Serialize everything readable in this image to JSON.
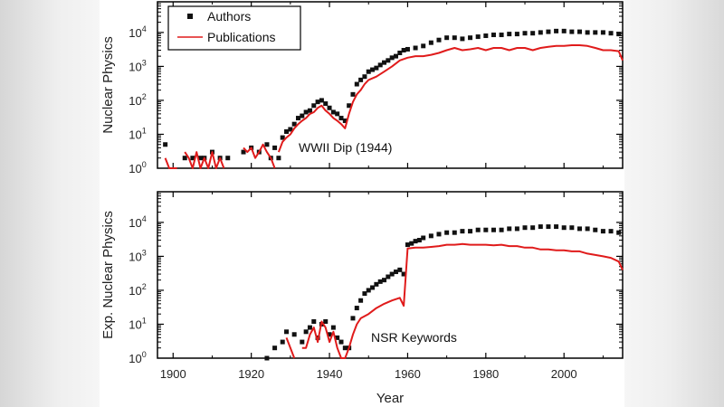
{
  "colors": {
    "authors": "#111111",
    "publications": "#e01b1b",
    "frame": "#000000",
    "page_background": "#f4f4f4"
  },
  "chart_data": [
    {
      "type": "scatter+line",
      "ylabel": "Nuclear Physics",
      "xlabel": "",
      "annotation": "WWII Dip (1944)",
      "yscale": "log",
      "xlim": [
        1896,
        2015
      ],
      "ylim": [
        1,
        80000
      ],
      "y_ticks": [
        1,
        10,
        100,
        1000,
        10000
      ],
      "y_tick_labels": [
        {
          "base": "10",
          "exp": "0"
        },
        {
          "base": "10",
          "exp": "1"
        },
        {
          "base": "10",
          "exp": "2"
        },
        {
          "base": "10",
          "exp": "3"
        },
        {
          "base": "10",
          "exp": "4"
        }
      ],
      "legend": {
        "placement": "top-left",
        "entries": [
          "Authors",
          "Publications"
        ]
      },
      "series": [
        {
          "name": "Authors",
          "kind": "markers",
          "x": [
            1898,
            1903,
            1905,
            1907,
            1908,
            1910,
            1912,
            1914,
            1918,
            1920,
            1922,
            1924,
            1925,
            1926,
            1927,
            1928,
            1929,
            1930,
            1931,
            1932,
            1933,
            1934,
            1935,
            1936,
            1937,
            1938,
            1939,
            1940,
            1941,
            1942,
            1943,
            1944,
            1945,
            1946,
            1947,
            1948,
            1949,
            1950,
            1951,
            1952,
            1953,
            1954,
            1955,
            1956,
            1957,
            1958,
            1959,
            1960,
            1962,
            1964,
            1966,
            1968,
            1970,
            1972,
            1974,
            1976,
            1978,
            1980,
            1982,
            1984,
            1986,
            1988,
            1990,
            1992,
            1994,
            1996,
            1998,
            2000,
            2002,
            2004,
            2006,
            2008,
            2010,
            2012,
            2014
          ],
          "y": [
            5,
            2,
            2,
            2,
            2,
            3,
            2,
            2,
            3,
            4,
            3,
            5,
            2,
            4,
            2,
            8,
            12,
            14,
            20,
            30,
            35,
            45,
            50,
            70,
            90,
            100,
            80,
            60,
            45,
            40,
            30,
            25,
            70,
            150,
            300,
            400,
            500,
            700,
            800,
            900,
            1100,
            1300,
            1500,
            1800,
            2000,
            2500,
            3000,
            3200,
            3500,
            4000,
            5000,
            6000,
            7000,
            7000,
            6500,
            7000,
            7500,
            8000,
            8500,
            8500,
            9000,
            9000,
            9500,
            9500,
            10000,
            10500,
            11000,
            11000,
            10500,
            10500,
            10000,
            10000,
            10000,
            9500,
            9000
          ]
        },
        {
          "name": "Publications",
          "kind": "line",
          "segments": [
            {
              "x": [
                1898,
                1899,
                1900,
                1901
              ],
              "y": [
                2,
                1,
                1,
                1
              ]
            },
            {
              "x": [
                1903,
                1904,
                1905,
                1906,
                1907,
                1908,
                1909,
                1910,
                1911,
                1912,
                1913
              ],
              "y": [
                3,
                2,
                1,
                3,
                1,
                2,
                1,
                3,
                1,
                2,
                1
              ]
            },
            {
              "x": [
                1918,
                1919,
                1920,
                1921,
                1922,
                1923,
                1924,
                1925,
                1926
              ],
              "y": [
                4,
                3,
                4,
                2,
                3,
                5,
                3,
                2,
                1
              ]
            },
            {
              "x": [
                1927,
                1928,
                1929,
                1930,
                1931,
                1932,
                1933,
                1934,
                1935,
                1936,
                1937,
                1938,
                1939,
                1940,
                1941,
                1942,
                1943,
                1944,
                1945,
                1946,
                1947,
                1948,
                1949,
                1950,
                1952,
                1954,
                1956,
                1958,
                1960,
                1962,
                1964,
                1966,
                1968,
                1970,
                1972,
                1974,
                1976,
                1978,
                1980,
                1982,
                1984,
                1986,
                1988,
                1990,
                1992,
                1994,
                1996,
                1998,
                2000,
                2002,
                2004,
                2006,
                2008,
                2010,
                2012,
                2014,
                2015
              ],
              "y": [
                3,
                6,
                8,
                10,
                15,
                20,
                25,
                30,
                40,
                45,
                60,
                70,
                50,
                40,
                30,
                25,
                20,
                15,
                40,
                90,
                150,
                200,
                300,
                400,
                500,
                700,
                1000,
                1500,
                1800,
                2000,
                2000,
                2200,
                2500,
                3000,
                3500,
                3000,
                3200,
                3500,
                3000,
                3500,
                3500,
                3000,
                3500,
                3500,
                3000,
                3500,
                3800,
                4000,
                4000,
                4200,
                4200,
                4000,
                3500,
                3000,
                3000,
                2800,
                1500
              ]
            }
          ]
        }
      ]
    },
    {
      "type": "scatter+line",
      "ylabel": "Exp. Nuclear Physics",
      "xlabel": "Year",
      "annotation": "NSR Keywords",
      "yscale": "log",
      "xlim": [
        1896,
        2015
      ],
      "ylim": [
        1,
        80000
      ],
      "y_ticks": [
        1,
        10,
        100,
        1000,
        10000
      ],
      "y_tick_labels": [
        {
          "base": "10",
          "exp": "0"
        },
        {
          "base": "10",
          "exp": "1"
        },
        {
          "base": "10",
          "exp": "2"
        },
        {
          "base": "10",
          "exp": "3"
        },
        {
          "base": "10",
          "exp": "4"
        }
      ],
      "x_ticks": [
        1900,
        1920,
        1940,
        1960,
        1980,
        2000
      ],
      "x_tick_labels": [
        "1900",
        "1920",
        "1940",
        "1960",
        "1980",
        "2000"
      ],
      "series": [
        {
          "name": "Authors",
          "kind": "markers",
          "x": [
            1924,
            1926,
            1928,
            1929,
            1931,
            1933,
            1934,
            1935,
            1936,
            1937,
            1938,
            1939,
            1940,
            1941,
            1942,
            1943,
            1944,
            1945,
            1946,
            1947,
            1948,
            1949,
            1950,
            1951,
            1952,
            1953,
            1954,
            1955,
            1956,
            1957,
            1958,
            1959,
            1960,
            1961,
            1962,
            1963,
            1964,
            1966,
            1968,
            1970,
            1972,
            1974,
            1976,
            1978,
            1980,
            1982,
            1984,
            1986,
            1988,
            1990,
            1992,
            1994,
            1996,
            1998,
            2000,
            2002,
            2004,
            2006,
            2008,
            2010,
            2012,
            2014
          ],
          "y": [
            1,
            2,
            3,
            6,
            5,
            3,
            6,
            8,
            12,
            4,
            10,
            12,
            5,
            8,
            4,
            3,
            2,
            2,
            15,
            30,
            50,
            80,
            100,
            120,
            150,
            180,
            200,
            250,
            300,
            350,
            400,
            300,
            2200,
            2400,
            2800,
            3000,
            3500,
            4000,
            4500,
            5000,
            5000,
            5500,
            5500,
            6000,
            6000,
            6000,
            6000,
            6500,
            6500,
            7000,
            7000,
            7500,
            7500,
            7500,
            7000,
            7000,
            6500,
            6500,
            6000,
            5500,
            5500,
            5000
          ]
        },
        {
          "name": "Publications",
          "kind": "line",
          "segments": [
            {
              "x": [
                1929,
                1930,
                1931
              ],
              "y": [
                4,
                2,
                1
              ]
            },
            {
              "x": [
                1933,
                1934,
                1935,
                1936,
                1937,
                1938,
                1939,
                1940,
                1941,
                1942,
                1943,
                1944,
                1945,
                1946,
                1947,
                1948,
                1950,
                1952,
                1954,
                1956,
                1958,
                1959,
                1960,
                1962,
                1964,
                1966,
                1968,
                1970,
                1972,
                1974,
                1976,
                1978,
                1980,
                1982,
                1984,
                1986,
                1988,
                1990,
                1992,
                1994,
                1996,
                1998,
                2000,
                2002,
                2004,
                2006,
                2008,
                2010,
                2012,
                2014,
                2015
              ],
              "y": [
                2,
                2,
                5,
                8,
                3,
                12,
                8,
                3,
                6,
                2,
                1,
                1,
                2,
                5,
                10,
                15,
                20,
                30,
                40,
                50,
                60,
                35,
                1700,
                1800,
                1800,
                1900,
                2000,
                2200,
                2200,
                2300,
                2200,
                2200,
                2200,
                2100,
                2200,
                2000,
                2000,
                1800,
                1800,
                1600,
                1600,
                1500,
                1500,
                1400,
                1400,
                1200,
                1100,
                1000,
                900,
                700,
                400
              ]
            }
          ]
        }
      ]
    }
  ]
}
